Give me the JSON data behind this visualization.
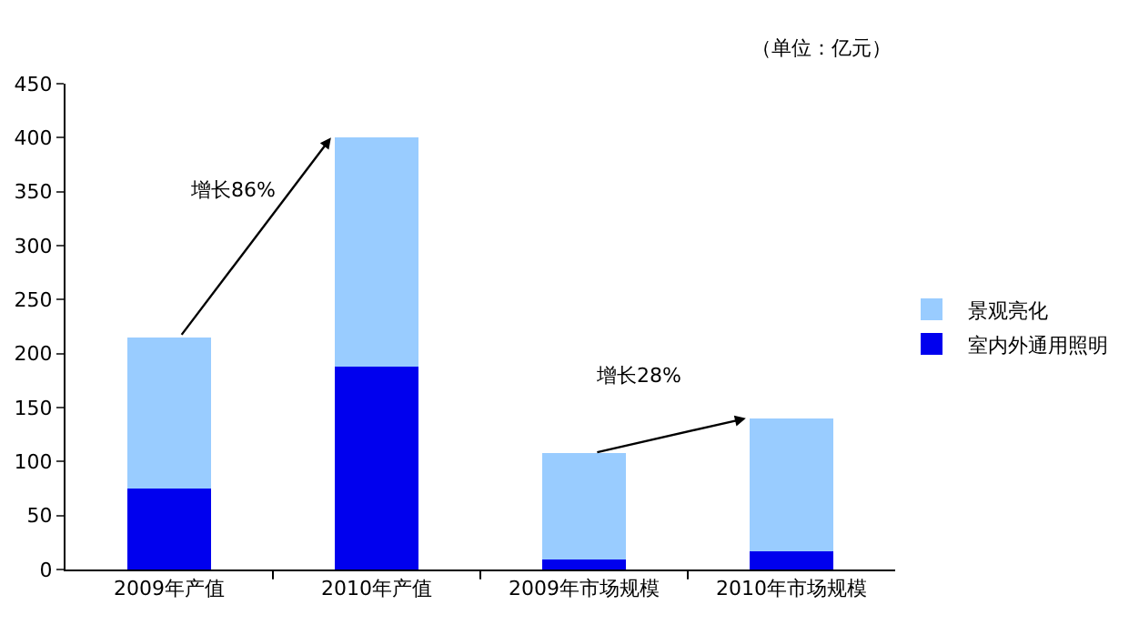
{
  "chart_data": {
    "type": "bar",
    "stacked": true,
    "categories": [
      "2009年产值",
      "2010年产值",
      "2009年市场规模",
      "2010年市场规模"
    ],
    "series": [
      {
        "name": "室内外通用照明",
        "color": "#0000ee",
        "values": [
          75,
          188,
          9,
          17
        ]
      },
      {
        "name": "景观亮化",
        "color": "#99ccff",
        "values": [
          140,
          212,
          99,
          123
        ]
      }
    ],
    "ylim": [
      0,
      450
    ],
    "yticks": [
      0,
      50,
      100,
      150,
      200,
      250,
      300,
      350,
      400,
      450
    ],
    "grid": false,
    "legend": "right",
    "annotations": [
      "（单位：亿元）",
      "增长86%",
      "增长28%"
    ]
  }
}
